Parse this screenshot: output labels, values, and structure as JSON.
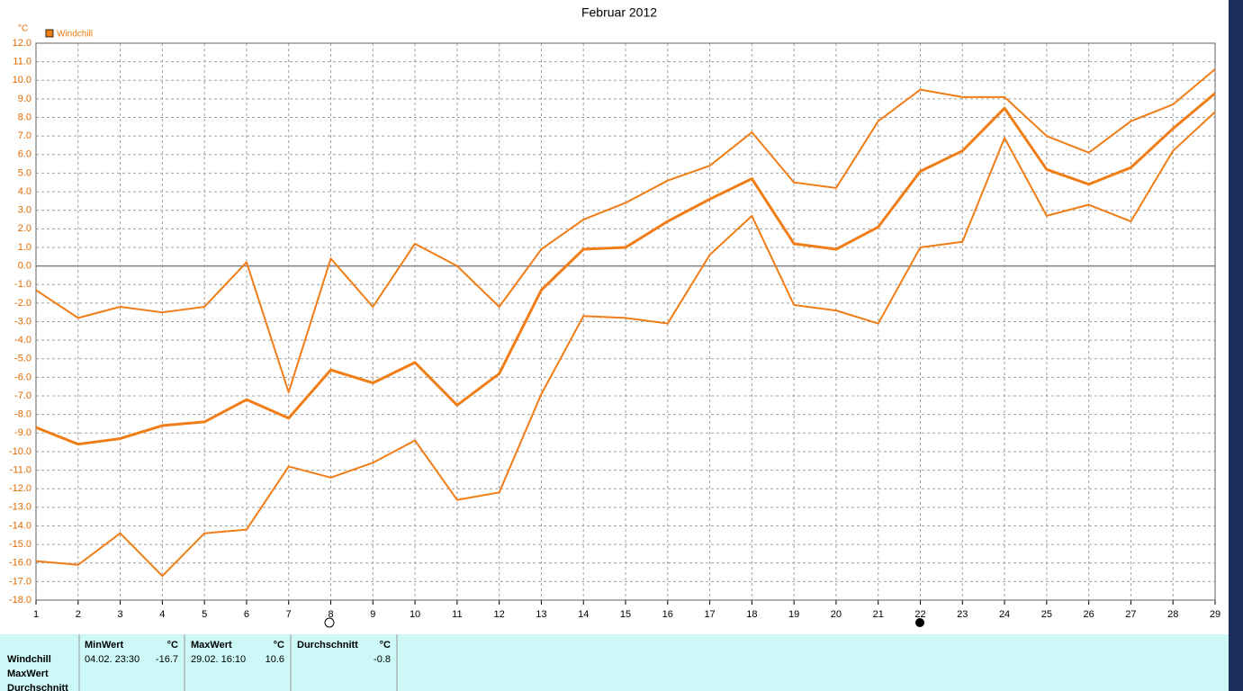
{
  "chart_data": {
    "type": "line",
    "title": "Februar 2012",
    "y_unit": "°C",
    "legend": "Windchill",
    "legend_color": "#f07d16",
    "x": [
      1,
      2,
      3,
      4,
      5,
      6,
      7,
      8,
      9,
      10,
      11,
      12,
      13,
      14,
      15,
      16,
      17,
      18,
      19,
      20,
      21,
      22,
      23,
      24,
      25,
      26,
      27,
      28,
      29
    ],
    "xlim": [
      1,
      29
    ],
    "xticks": [
      1,
      2,
      3,
      4,
      5,
      6,
      7,
      8,
      9,
      10,
      11,
      12,
      13,
      14,
      15,
      16,
      17,
      18,
      19,
      20,
      21,
      22,
      23,
      24,
      25,
      26,
      27,
      28,
      29
    ],
    "ylim": [
      -18,
      12
    ],
    "yticks": [
      {
        "value": 12,
        "label": "12.0"
      },
      {
        "value": 11,
        "label": "11.0"
      },
      {
        "value": 10,
        "label": "10.0"
      },
      {
        "value": 9,
        "label": "9.0"
      },
      {
        "value": 8,
        "label": "8.0"
      },
      {
        "value": 7,
        "label": "7.0"
      },
      {
        "value": 6,
        "label": "6.0"
      },
      {
        "value": 5,
        "label": "5.0"
      },
      {
        "value": 4,
        "label": "4.0"
      },
      {
        "value": 3,
        "label": "3.0"
      },
      {
        "value": 2,
        "label": "2.0"
      },
      {
        "value": 1,
        "label": "1.0"
      },
      {
        "value": 0,
        "label": "0.0"
      },
      {
        "value": -1,
        "label": "-1.0"
      },
      {
        "value": -2,
        "label": "-2.0"
      },
      {
        "value": -3,
        "label": "-3.0"
      },
      {
        "value": -4,
        "label": "-4.0"
      },
      {
        "value": -5,
        "label": "-5.0"
      },
      {
        "value": -6,
        "label": "-6.0"
      },
      {
        "value": -7,
        "label": "-7.0"
      },
      {
        "value": -8,
        "label": "-8.0"
      },
      {
        "value": -9,
        "label": "-9.0"
      },
      {
        "value": -10,
        "label": "-10.0"
      },
      {
        "value": -11,
        "label": "-11.0"
      },
      {
        "value": -12,
        "label": "-12.0"
      },
      {
        "value": -13,
        "label": "-13.0"
      },
      {
        "value": -14,
        "label": "-14.0"
      },
      {
        "value": -15,
        "label": "-15.0"
      },
      {
        "value": -16,
        "label": "-16.0"
      },
      {
        "value": -17,
        "label": "-17.0"
      },
      {
        "value": -18,
        "label": "-18.0"
      }
    ],
    "grid": true,
    "series": [
      {
        "color": "#f07d16",
        "line_width": 2,
        "values": [
          -1.3,
          -2.8,
          -2.2,
          -2.5,
          -2.2,
          0.2,
          -6.8,
          0.4,
          -2.2,
          1.2,
          0.0,
          -2.2,
          0.9,
          2.5,
          3.4,
          4.6,
          5.4,
          7.2,
          4.5,
          4.2,
          7.8,
          9.5,
          9.1,
          9.1,
          7.0,
          6.1,
          7.8,
          8.7,
          10.6
        ]
      },
      {
        "color": "#f07d16",
        "line_width": 3,
        "values": [
          -8.7,
          -9.6,
          -9.3,
          -8.6,
          -8.4,
          -7.2,
          -8.2,
          -5.6,
          -6.3,
          -5.2,
          -7.5,
          -5.8,
          -1.3,
          0.9,
          1.0,
          2.4,
          3.6,
          4.7,
          1.2,
          0.9,
          2.1,
          5.1,
          6.2,
          8.5,
          5.2,
          4.4,
          5.3,
          7.4,
          9.3
        ]
      },
      {
        "color": "#f07d16",
        "line_width": 2,
        "values": [
          -15.9,
          -16.1,
          -14.4,
          -16.7,
          -14.4,
          -14.2,
          -10.8,
          -11.4,
          -10.6,
          -9.4,
          -12.6,
          -12.2,
          -6.9,
          -2.7,
          -2.8,
          -3.1,
          0.6,
          2.7,
          -2.1,
          -2.4,
          -3.1,
          1.0,
          1.3,
          6.9,
          2.7,
          3.3,
          2.4,
          6.2,
          8.3
        ]
      }
    ]
  },
  "table": {
    "rows": [
      "Windchill",
      "MaxWert",
      "Durchschnitt"
    ],
    "columns": [
      {
        "header": "MinWert",
        "unit": "°C",
        "date": "04.02.  23:30",
        "value": "-16.7"
      },
      {
        "header": "MaxWert",
        "unit": "°C",
        "date": "29.02.  16:10",
        "value": "10.6"
      },
      {
        "header": "Durchschnitt",
        "unit": "°C",
        "value": "-0.8"
      }
    ]
  }
}
